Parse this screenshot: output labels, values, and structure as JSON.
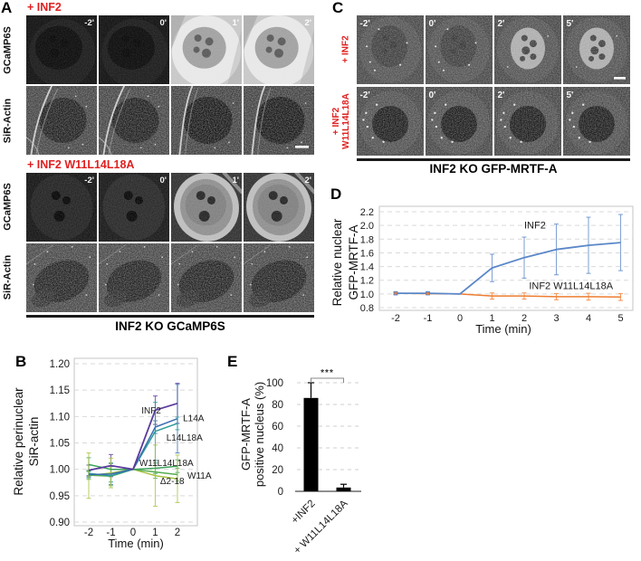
{
  "colors": {
    "accent_red": "#e02020",
    "bar_black": "#000000",
    "grid_gray": "#d9d9d9"
  },
  "panel_a": {
    "label": "A",
    "caption": "INF2 KO GCaMP6S",
    "groups": [
      {
        "title": "+ INF2",
        "rows": [
          {
            "label": "GCaMP6S",
            "tiles": [
              {
                "time": "-2'",
                "look": "a1_gcamp_dark"
              },
              {
                "time": "0'",
                "look": "a1_gcamp_dark"
              },
              {
                "time": "1'",
                "look": "a1_gcamp_bright"
              },
              {
                "time": "2'",
                "look": "a1_gcamp_bright"
              }
            ]
          },
          {
            "label": "SiR-Actin",
            "tiles": [
              {
                "time": "",
                "look": "a1_actin"
              },
              {
                "time": "",
                "look": "a1_actin"
              },
              {
                "time": "",
                "look": "a1_actin_late"
              },
              {
                "time": "",
                "look": "a1_actin_late",
                "scalebar": true
              }
            ]
          }
        ]
      },
      {
        "title": "+ INF2 W11L14L18A",
        "rows": [
          {
            "label": "GCaMP6S",
            "tiles": [
              {
                "time": "-2'",
                "look": "a2_gcamp_dark"
              },
              {
                "time": "0'",
                "look": "a2_gcamp_dark0"
              },
              {
                "time": "1'",
                "look": "a2_gcamp_bright"
              },
              {
                "time": "2'",
                "look": "a2_gcamp_bright"
              }
            ]
          },
          {
            "label": "SiR-Actin",
            "tiles": [
              {
                "time": "",
                "look": "a2_actin"
              },
              {
                "time": "",
                "look": "a2_actin"
              },
              {
                "time": "",
                "look": "a2_actin"
              },
              {
                "time": "",
                "look": "a2_actin"
              }
            ]
          }
        ]
      }
    ]
  },
  "panel_c": {
    "label": "C",
    "caption": "INF2 KO GFP-MRTF-A",
    "rows": [
      {
        "label_lines": [
          "+ INF2"
        ],
        "tiles": [
          {
            "time": "-2'",
            "look": "c1_dim"
          },
          {
            "time": "0'",
            "look": "c1_dim"
          },
          {
            "time": "2'",
            "look": "c1_bright"
          },
          {
            "time": "5'",
            "look": "c1_bright",
            "scalebar": true
          }
        ]
      },
      {
        "label_lines": [
          "+ INF2",
          "W11L14L18A"
        ],
        "tiles": [
          {
            "time": "-2'",
            "look": "c2"
          },
          {
            "time": "0'",
            "look": "c2"
          },
          {
            "time": "2'",
            "look": "c2"
          },
          {
            "time": "5'",
            "look": "c2"
          }
        ]
      }
    ]
  },
  "panel_b": {
    "label": "B"
  },
  "panel_d": {
    "label": "D"
  },
  "panel_e": {
    "label": "E"
  },
  "chart_data": [
    {
      "id": "panel-b",
      "type": "line",
      "title": "",
      "ylabel": "Relative perinuclear SiR-actin",
      "ylabel_lines": [
        "Relative perinuclear",
        "SiR-actin"
      ],
      "xlabel": "Time (min)",
      "x": [
        -2,
        -1,
        0,
        1,
        2
      ],
      "ylim": [
        0.9,
        1.2
      ],
      "yticks": [
        "0.90",
        "0.95",
        "1.00",
        "1.05",
        "1.10",
        "1.15",
        "1.20"
      ],
      "grid": "dashed",
      "legend_position": "inline-annotations",
      "series": [
        {
          "name": "INF2",
          "color": "#5a3b9c",
          "values": [
            0.998,
            1.007,
            1.0,
            1.112,
            1.125
          ],
          "errors": [
            0.01,
            0.021,
            0,
            0.027,
            0.038
          ]
        },
        {
          "name": "L14A",
          "color": "#3b6eb1",
          "values": [
            0.99,
            0.991,
            1.0,
            1.08,
            1.096
          ],
          "errors": [
            0.006,
            0.02,
            0,
            0.012,
            0.065
          ]
        },
        {
          "name": "L14L18A",
          "color": "#2d9a9a",
          "values": [
            0.992,
            0.988,
            1.0,
            1.072,
            1.087
          ],
          "errors": [
            0.006,
            0.012,
            0,
            0.055,
            0.012
          ]
        },
        {
          "name": "W11L14L18A",
          "color": "#3da35b",
          "values": [
            1.009,
            1.0,
            1.0,
            1.002,
            1.006
          ],
          "errors": [
            0.013,
            0.012,
            0,
            0.01,
            0.012
          ]
        },
        {
          "name": "W11A",
          "color": "#57ab4f",
          "values": [
            0.989,
            0.987,
            1.0,
            0.995,
            0.99
          ],
          "errors": [
            0.008,
            0.018,
            0,
            0.012,
            0.012
          ]
        },
        {
          "name": "Δ2-18",
          "color": "#a7c23e",
          "values": [
            0.988,
            0.993,
            1.0,
            0.988,
            0.982
          ],
          "errors": [
            0.043,
            0.028,
            0,
            0.058,
            0.045
          ]
        }
      ],
      "annotations": [
        {
          "text": "INF2",
          "x": 1.26,
          "y": 1.112,
          "anchor": "end"
        },
        {
          "text": "L14A",
          "x": 2.25,
          "y": 1.097,
          "anchor": "start"
        },
        {
          "text": "L14L18A",
          "x": 1.5,
          "y": 1.06,
          "anchor": "start"
        },
        {
          "text": "W11L14L18A",
          "x": 0.28,
          "y": 1.012,
          "anchor": "start"
        },
        {
          "text": "W11A",
          "x": 2.45,
          "y": 0.988,
          "anchor": "start"
        },
        {
          "text": "Δ2-18",
          "x": 1.22,
          "y": 0.978,
          "anchor": "start"
        }
      ]
    },
    {
      "id": "panel-d",
      "type": "line",
      "title": "",
      "ylabel": "Relative nuclear GFP-MRTF-A",
      "ylabel_lines": [
        "Relative nuclear",
        "GFP-MRTF-A"
      ],
      "xlabel": "Time (min)",
      "x": [
        -2,
        -1,
        0,
        1,
        2,
        3,
        4,
        5
      ],
      "ylim": [
        0.8,
        2.2
      ],
      "yticks": [
        "0.8",
        "1.0",
        "1.2",
        "1.4",
        "1.6",
        "1.8",
        "2.0",
        "2.2"
      ],
      "grid": "dashed",
      "legend_position": "inline-annotations",
      "series": [
        {
          "name": "INF2",
          "color": "#5b87c8",
          "squares": true,
          "sq": 4.6,
          "values": [
            1.01,
            1.01,
            1.0,
            1.38,
            1.53,
            1.65,
            1.71,
            1.75
          ],
          "errors": [
            0.02,
            0.015,
            0,
            0.2,
            0.3,
            0.37,
            0.41,
            0.41
          ]
        },
        {
          "name": "INF2 W11L14L18A",
          "color": "#ee7d31",
          "squares": true,
          "sq": 2.8,
          "values": [
            1.01,
            1.005,
            1.0,
            0.97,
            0.97,
            0.96,
            0.96,
            0.955
          ],
          "errors": [
            0.01,
            0.008,
            0,
            0.045,
            0.045,
            0.045,
            0.05,
            0.05
          ]
        }
      ],
      "annotations": [
        {
          "text": "INF2",
          "x": 2.0,
          "y": 2.0,
          "anchor": "start"
        },
        {
          "text": "INF2 W11L14L18A",
          "x": 2.15,
          "y": 1.12,
          "anchor": "start"
        }
      ]
    },
    {
      "id": "panel-e",
      "type": "bar",
      "title": "",
      "ylabel": "GFP-MRTF-A positive nucleus (%)",
      "ylabel_lines": [
        "GFP-MRTF-A",
        "positive nucleus (%)"
      ],
      "categories": [
        "+INF2",
        "+ W11L14L18A"
      ],
      "values": [
        86,
        3.5
      ],
      "errors": [
        14,
        3
      ],
      "ylim": [
        0,
        100
      ],
      "yticks": [
        0,
        20,
        40,
        60,
        80,
        100
      ],
      "grid": "dashed",
      "bar_color": "#000000",
      "significance": {
        "text": "***",
        "between": [
          0,
          1
        ]
      }
    }
  ]
}
